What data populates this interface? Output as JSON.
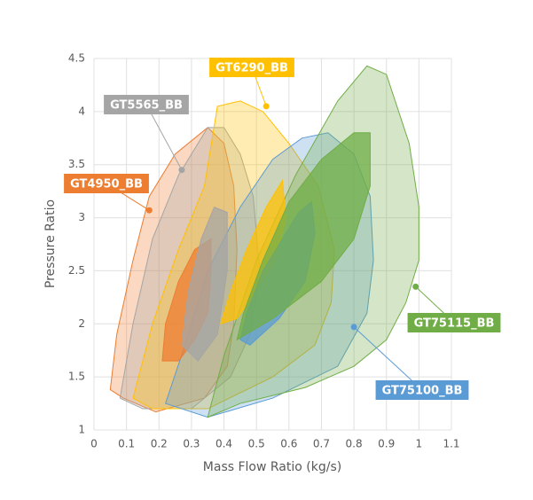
{
  "chart_data": {
    "type": "area",
    "x_label": "Mass Flow Ratio (kg/s)",
    "y_label": "Pressure Ratio",
    "xlim": [
      0,
      1.1
    ],
    "xticks": [
      0,
      0.1,
      0.2,
      0.3,
      0.4,
      0.5,
      0.6,
      0.7,
      0.8,
      0.9,
      1,
      1.1
    ],
    "ylim": [
      1,
      4.5
    ],
    "yticks": [
      1,
      1.5,
      2,
      2.5,
      3,
      3.5,
      4,
      4.5
    ],
    "grid": true,
    "series": [
      {
        "name": "GT4950_BB",
        "color": "#ed7d31",
        "x": [
          0.05,
          0.07,
          0.12,
          0.17,
          0.25,
          0.35,
          0.4,
          0.43,
          0.44,
          0.43,
          0.41,
          0.34,
          0.19,
          0.09
        ],
        "y": [
          1.38,
          1.9,
          2.6,
          3.2,
          3.6,
          3.85,
          3.7,
          3.3,
          2.7,
          2.0,
          1.6,
          1.3,
          1.17,
          1.3
        ],
        "inner_x": [
          0.21,
          0.22,
          0.26,
          0.31,
          0.36,
          0.36,
          0.35,
          0.31,
          0.26
        ],
        "inner_y": [
          1.65,
          2.0,
          2.4,
          2.7,
          2.8,
          2.5,
          2.1,
          1.85,
          1.65
        ],
        "label_point": [
          0.17,
          3.07
        ]
      },
      {
        "name": "GT5565_BB",
        "color": "#a5a5a5",
        "x": [
          0.08,
          0.12,
          0.18,
          0.26,
          0.35,
          0.4,
          0.45,
          0.49,
          0.51,
          0.48,
          0.42,
          0.3,
          0.15
        ],
        "y": [
          1.3,
          2.0,
          2.8,
          3.4,
          3.85,
          3.85,
          3.6,
          3.2,
          2.5,
          1.9,
          1.5,
          1.2,
          1.2
        ],
        "inner_x": [
          0.27,
          0.29,
          0.33,
          0.37,
          0.41,
          0.41,
          0.38,
          0.32
        ],
        "inner_y": [
          1.8,
          2.3,
          2.8,
          3.1,
          3.05,
          2.5,
          1.9,
          1.65
        ],
        "label_point": [
          0.27,
          3.45
        ]
      },
      {
        "name": "GT6290_BB",
        "color": "#ffc000",
        "x": [
          0.12,
          0.18,
          0.26,
          0.34,
          0.38,
          0.45,
          0.52,
          0.6,
          0.69,
          0.74,
          0.73,
          0.68,
          0.55,
          0.35,
          0.18
        ],
        "y": [
          1.3,
          2.0,
          2.7,
          3.3,
          4.05,
          4.1,
          4.0,
          3.7,
          3.3,
          2.7,
          2.2,
          1.8,
          1.5,
          1.2,
          1.2
        ],
        "inner_x": [
          0.39,
          0.42,
          0.47,
          0.53,
          0.58,
          0.59,
          0.56,
          0.5,
          0.44
        ],
        "inner_y": [
          2.0,
          2.3,
          2.7,
          3.1,
          3.35,
          3.0,
          2.6,
          2.3,
          2.05
        ],
        "label_point": [
          0.53,
          4.05
        ]
      },
      {
        "name": "GT75100_BB",
        "color": "#5b9bd5",
        "x": [
          0.22,
          0.28,
          0.35,
          0.45,
          0.55,
          0.64,
          0.72,
          0.8,
          0.85,
          0.86,
          0.84,
          0.75,
          0.55,
          0.35
        ],
        "y": [
          1.25,
          1.8,
          2.5,
          3.1,
          3.55,
          3.75,
          3.8,
          3.6,
          3.2,
          2.6,
          2.1,
          1.6,
          1.3,
          1.12
        ],
        "inner_x": [
          0.45,
          0.47,
          0.52,
          0.58,
          0.63,
          0.67,
          0.68,
          0.65,
          0.57,
          0.48
        ],
        "inner_y": [
          1.85,
          2.1,
          2.5,
          2.8,
          3.05,
          3.15,
          2.85,
          2.4,
          2.05,
          1.8
        ],
        "label_point": [
          0.8,
          1.97
        ]
      },
      {
        "name": "GT75115_BB",
        "color": "#70ad47",
        "x": [
          0.35,
          0.4,
          0.5,
          0.62,
          0.75,
          0.84,
          0.9,
          0.97,
          1.0,
          1.0,
          0.96,
          0.9,
          0.8,
          0.65,
          0.45
        ],
        "y": [
          1.12,
          1.7,
          2.6,
          3.4,
          4.1,
          4.43,
          4.35,
          3.7,
          3.1,
          2.6,
          2.2,
          1.85,
          1.6,
          1.4,
          1.25
        ],
        "inner_x": [
          0.44,
          0.46,
          0.52,
          0.6,
          0.7,
          0.8,
          0.85,
          0.85,
          0.8,
          0.7,
          0.55
        ],
        "inner_y": [
          1.85,
          2.1,
          2.6,
          3.15,
          3.55,
          3.8,
          3.8,
          3.3,
          2.8,
          2.4,
          2.05
        ],
        "label_point": [
          0.99,
          2.35
        ]
      }
    ]
  }
}
